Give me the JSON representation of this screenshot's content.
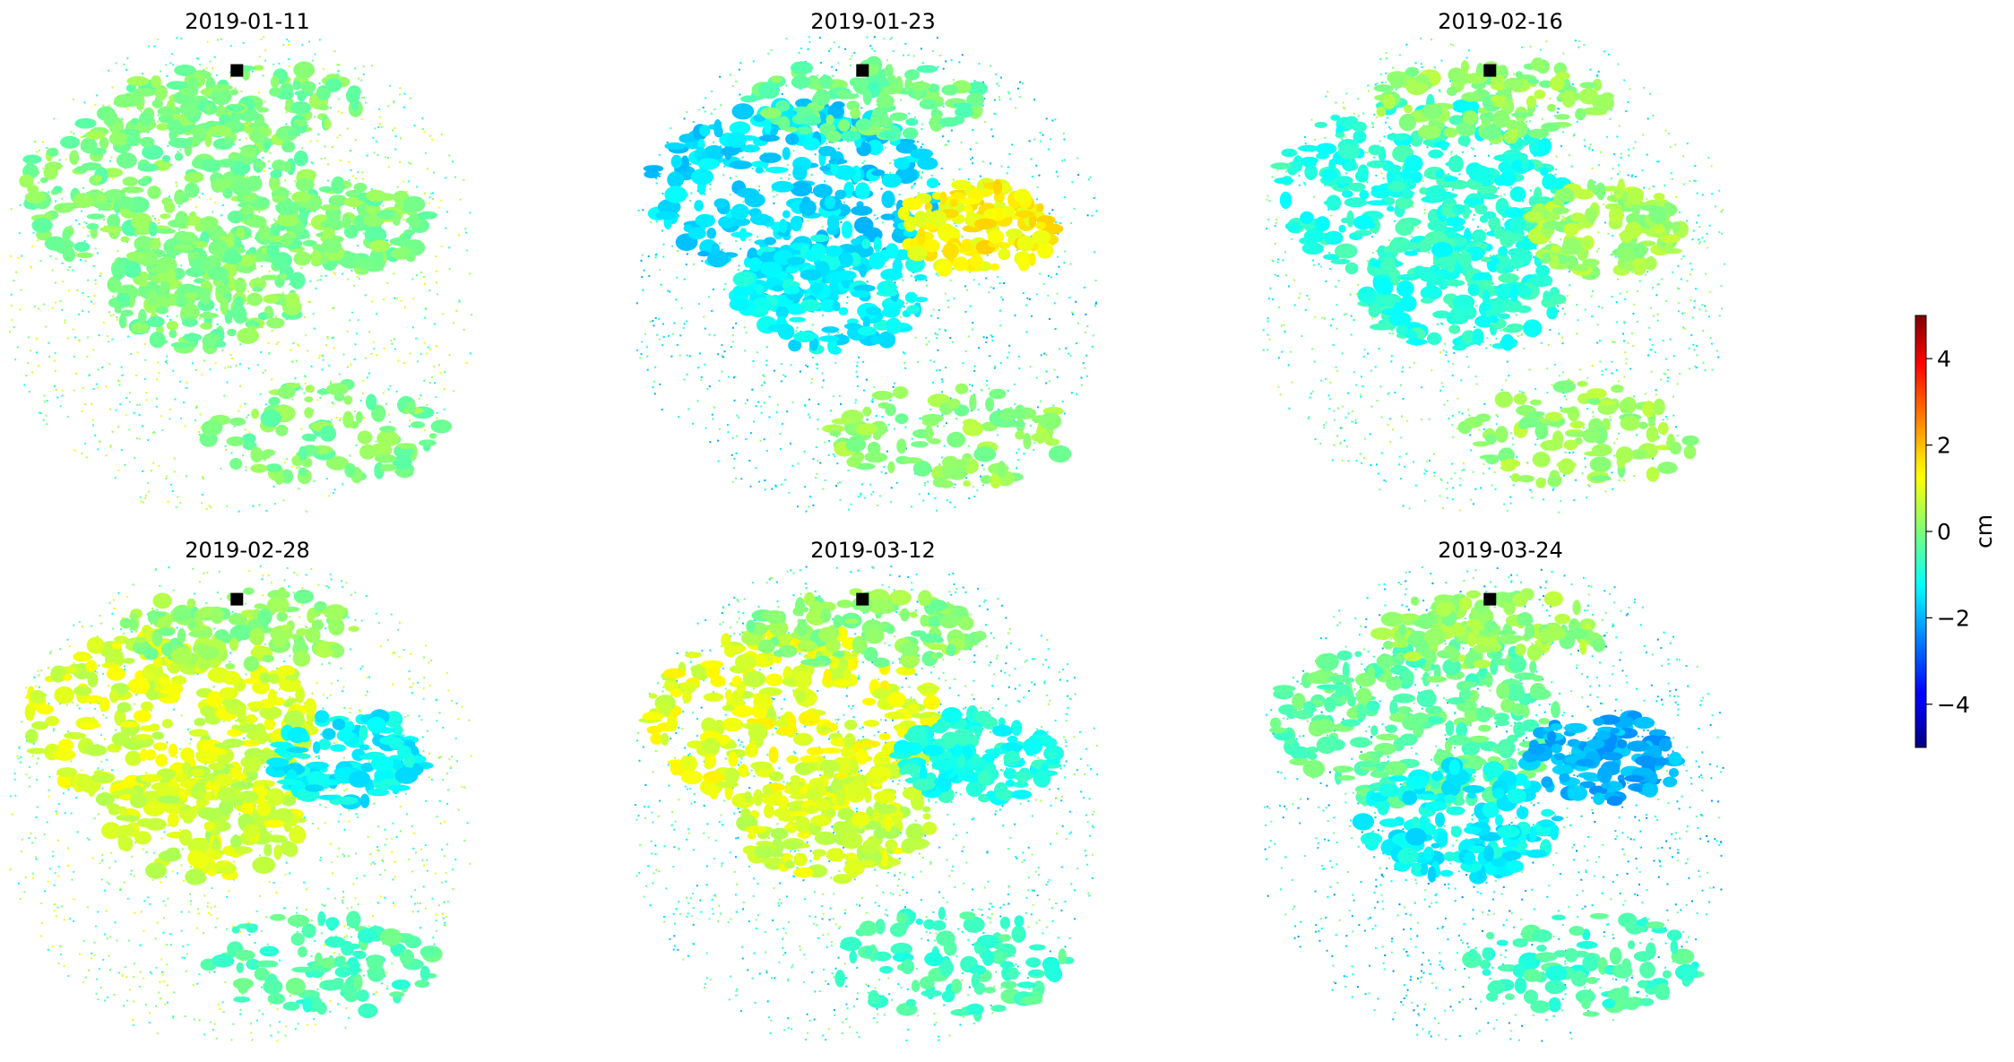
{
  "chart_data": {
    "type": "heatmap",
    "title": "",
    "subtitle": "",
    "layout": "2x3 grid of displacement maps sharing one colorbar",
    "colormap": "jet",
    "grid": false,
    "axes_visible": false,
    "reference_marker": {
      "shape": "black square",
      "color": "#000000"
    },
    "panels": [
      {
        "title": "2019-01-11",
        "dominant_value": 0.0,
        "regions": [
          {
            "name": "west lobe",
            "value": 0.0
          },
          {
            "name": "south-west lobe",
            "value": 0.0
          },
          {
            "name": "east lobe",
            "value": 0.0
          },
          {
            "name": "north rim",
            "value": 0.0
          },
          {
            "name": "south rim",
            "value": 0.0
          },
          {
            "name": "scatter",
            "value": 0.0
          }
        ]
      },
      {
        "title": "2019-01-23",
        "dominant_value": -0.8,
        "regions": [
          {
            "name": "west lobe",
            "value": -1.6
          },
          {
            "name": "south-west lobe",
            "value": -1.3
          },
          {
            "name": "east lobe",
            "value": 1.3
          },
          {
            "name": "north rim",
            "value": -0.2
          },
          {
            "name": "south rim",
            "value": 0.2
          },
          {
            "name": "scatter",
            "value": -1.0
          }
        ]
      },
      {
        "title": "2019-02-16",
        "dominant_value": -0.6,
        "regions": [
          {
            "name": "west lobe",
            "value": -0.9
          },
          {
            "name": "south-west lobe",
            "value": -0.9
          },
          {
            "name": "east lobe",
            "value": 0.3
          },
          {
            "name": "north rim",
            "value": 0.2
          },
          {
            "name": "south rim",
            "value": 0.3
          },
          {
            "name": "scatter",
            "value": -0.5
          }
        ]
      },
      {
        "title": "2019-02-28",
        "dominant_value": 0.4,
        "regions": [
          {
            "name": "west lobe",
            "value": 0.9
          },
          {
            "name": "south-west lobe",
            "value": 0.8
          },
          {
            "name": "east lobe",
            "value": -1.3
          },
          {
            "name": "north rim",
            "value": 0.2
          },
          {
            "name": "south rim",
            "value": -0.5
          },
          {
            "name": "scatter",
            "value": 0.0
          }
        ]
      },
      {
        "title": "2019-03-12",
        "dominant_value": 0.2,
        "regions": [
          {
            "name": "west lobe",
            "value": 1.0
          },
          {
            "name": "south-west lobe",
            "value": 0.8
          },
          {
            "name": "east lobe",
            "value": -1.0
          },
          {
            "name": "north rim",
            "value": 0.1
          },
          {
            "name": "south rim",
            "value": -0.6
          },
          {
            "name": "scatter",
            "value": -0.8
          }
        ]
      },
      {
        "title": "2019-03-24",
        "dominant_value": -0.6,
        "regions": [
          {
            "name": "west lobe",
            "value": -0.3
          },
          {
            "name": "south-west lobe",
            "value": -1.3
          },
          {
            "name": "east lobe",
            "value": -2.0
          },
          {
            "name": "north rim",
            "value": 0.3
          },
          {
            "name": "south rim",
            "value": -0.6
          },
          {
            "name": "scatter",
            "value": -1.2
          }
        ]
      }
    ],
    "colorbar": {
      "label": "cm",
      "vmin": -5,
      "vmax": 5,
      "ticks": [
        4,
        2,
        0,
        -2,
        -4
      ],
      "tick_labels": [
        "4",
        "2",
        "0",
        "−2",
        "−4"
      ]
    }
  }
}
